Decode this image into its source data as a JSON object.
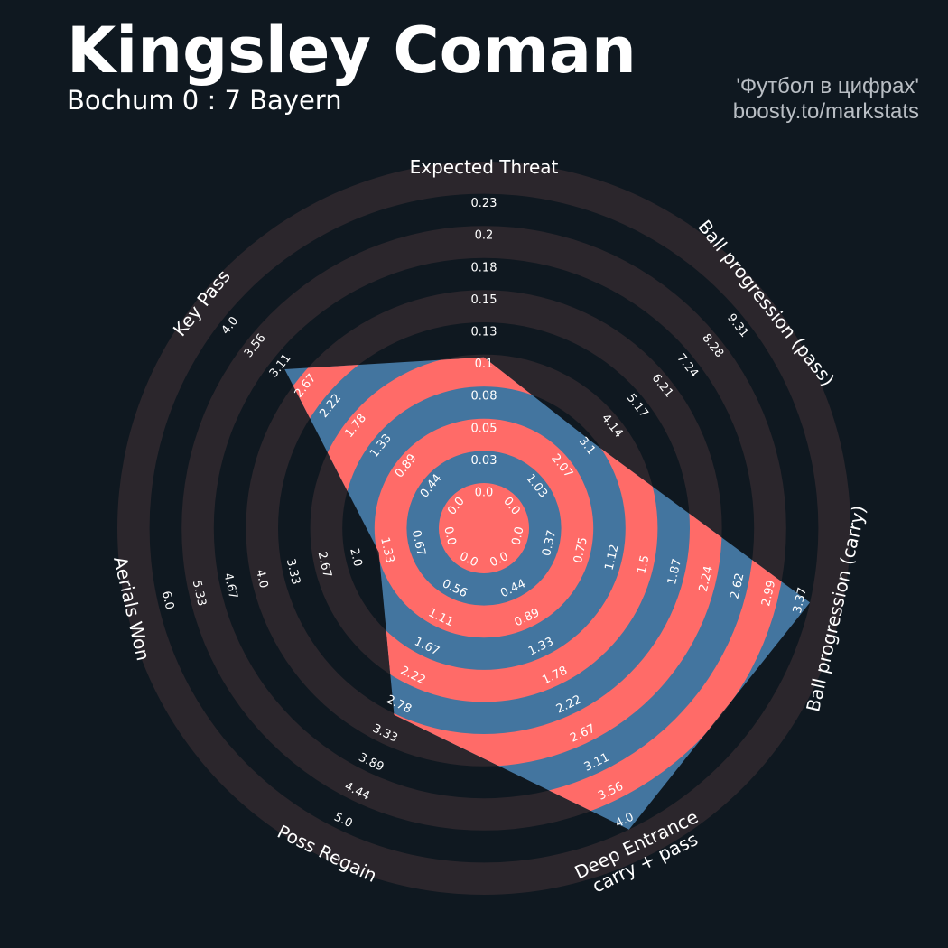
{
  "header": {
    "title": "Kingsley Coman",
    "subtitle": "Bochum 0 : 7 Bayern",
    "credit_line1": "'Футбол в цифрах'",
    "credit_line2": "boosty.to/markstats"
  },
  "colors": {
    "background": "#0f1820",
    "outer_ring": "#2b262c",
    "polygon_ring_a": "#ff6b68",
    "polygon_ring_b": "#43759f",
    "text": "#ffffff",
    "credit": "#b9bec4"
  },
  "chart_data": {
    "type": "radar",
    "title": "Kingsley Coman",
    "subtitle": "Bochum 0 : 7 Bayern",
    "parameters": [
      {
        "label": "Expected Threat",
        "min": 0.0,
        "max": 0.23,
        "value": 0.1,
        "ticks": [
          "0.0",
          "0.03",
          "0.05",
          "0.08",
          "0.1",
          "0.13",
          "0.15",
          "0.18",
          "0.2",
          "0.23"
        ]
      },
      {
        "label": "Ball progression (pass)",
        "min": 0.0,
        "max": 9.31,
        "value": 3.0,
        "ticks": [
          "0.0",
          "1.03",
          "2.07",
          "3.1",
          "4.14",
          "5.17",
          "6.21",
          "7.24",
          "8.28",
          "9.31"
        ]
      },
      {
        "label": "Ball progression (carry)",
        "min": 0.0,
        "max": 3.37,
        "value": 3.37,
        "ticks": [
          "0.0",
          "0.37",
          "0.75",
          "1.12",
          "1.5",
          "1.87",
          "2.24",
          "2.62",
          "2.99",
          "3.37"
        ]
      },
      {
        "label": "Deep Entrance\ncarry + pass",
        "min": 0.0,
        "max": 4.0,
        "value": 4.0,
        "ticks": [
          "0.0",
          "0.44",
          "0.89",
          "1.33",
          "1.78",
          "2.22",
          "2.67",
          "3.11",
          "3.56",
          "4.0"
        ]
      },
      {
        "label": "Poss Regain",
        "min": 0.0,
        "max": 5.0,
        "value": 2.8,
        "ticks": [
          "0.0",
          "0.56",
          "1.11",
          "1.67",
          "2.22",
          "2.78",
          "3.33",
          "3.89",
          "4.44",
          "5.0"
        ]
      },
      {
        "label": "Aerials Won",
        "min": 0.0,
        "max": 6.0,
        "value": 1.3,
        "ticks": [
          "0.0",
          "0.67",
          "1.33",
          "2.0",
          "2.67",
          "3.33",
          "4.0",
          "4.67",
          "5.33",
          "6.0"
        ]
      },
      {
        "label": "Key Pass",
        "min": 0.0,
        "max": 4.0,
        "value": 2.9,
        "ticks": [
          "0.0",
          "0.44",
          "0.89",
          "1.33",
          "1.78",
          "2.22",
          "2.67",
          "3.11",
          "3.56",
          "4.0"
        ]
      }
    ]
  }
}
